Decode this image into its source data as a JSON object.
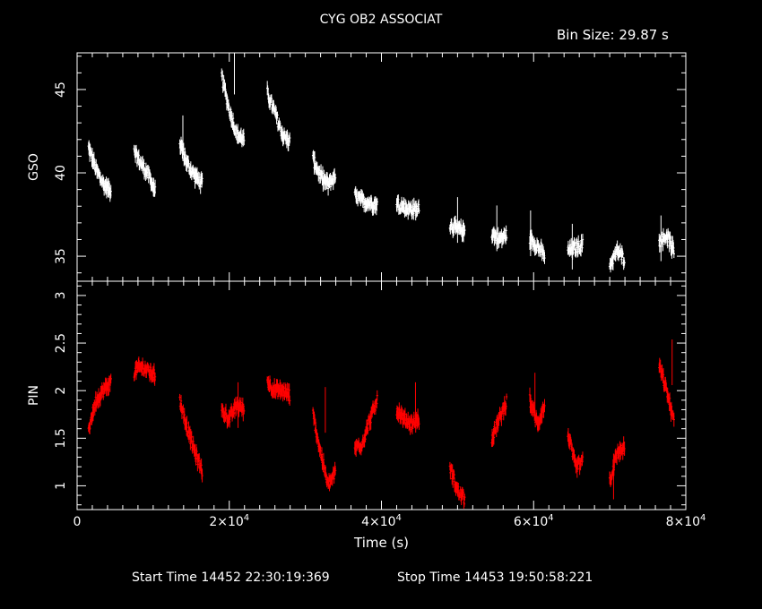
{
  "header": {
    "title": "CYG OB2 ASSOCIAT",
    "bin_size": "Bin Size: 29.87 s"
  },
  "footer": {
    "start_time": "Start Time 14452 22:30:19:369",
    "stop_time": "Stop Time 14453 19:50:58:221"
  },
  "chart_data": [
    {
      "type": "scatter",
      "panel": "top",
      "ylabel": "GSO",
      "xlim": [
        0,
        80000
      ],
      "ylim": [
        33.5,
        47.2
      ],
      "yticks": [
        35,
        40,
        45
      ],
      "color": "#ffffff",
      "error_bars": true,
      "segments": [
        {
          "x": [
            1500,
            2500,
            3500,
            4500
          ],
          "y": [
            41.5,
            40.2,
            39.3,
            38.9
          ]
        },
        {
          "x": [
            7500,
            8500,
            9500,
            10300
          ],
          "y": [
            41.2,
            40.5,
            39.8,
            38.8
          ]
        },
        {
          "x": [
            13500,
            14500,
            15500,
            16500
          ],
          "y": [
            41.8,
            40.5,
            39.8,
            39.3
          ]
        },
        {
          "x": [
            19000,
            20000,
            21000,
            22000
          ],
          "y": [
            45.8,
            43.8,
            42.3,
            42.0
          ]
        },
        {
          "x": [
            25000,
            26000,
            27000,
            28000
          ],
          "y": [
            44.8,
            43.6,
            42.3,
            41.8
          ]
        },
        {
          "x": [
            31000,
            32000,
            33000,
            34000
          ],
          "y": [
            40.8,
            39.8,
            39.3,
            39.8
          ]
        },
        {
          "x": [
            36500,
            37500,
            38500,
            39500
          ],
          "y": [
            38.6,
            38.3,
            38.2,
            38.1
          ]
        },
        {
          "x": [
            42000,
            43000,
            44000,
            45000
          ],
          "y": [
            38.2,
            37.9,
            37.8,
            37.8
          ]
        },
        {
          "x": [
            49000,
            50000,
            51000
          ],
          "y": [
            36.9,
            36.6,
            36.5
          ]
        },
        {
          "x": [
            54500,
            55500,
            56500
          ],
          "y": [
            36.4,
            36.0,
            36.3
          ]
        },
        {
          "x": [
            59500,
            60500,
            61500
          ],
          "y": [
            36.1,
            35.6,
            35.0
          ]
        },
        {
          "x": [
            64500,
            65500,
            66500
          ],
          "y": [
            35.3,
            35.5,
            35.7
          ]
        },
        {
          "x": [
            70000,
            71000,
            72000
          ],
          "y": [
            34.5,
            35.3,
            34.8
          ]
        },
        {
          "x": [
            76500,
            77500,
            78500
          ],
          "y": [
            35.8,
            36.3,
            35.2
          ]
        }
      ]
    },
    {
      "type": "scatter",
      "panel": "bottom",
      "xlabel": "Time (s)",
      "ylabel": "PIN",
      "xlim": [
        0,
        80000
      ],
      "ylim": [
        0.75,
        3.15
      ],
      "yticks": [
        1,
        1.5,
        2,
        2.5,
        3
      ],
      "xticks": [
        0,
        20000,
        40000,
        60000,
        80000
      ],
      "xticklabels": [
        "0",
        "2×10",
        "4×10",
        "6×10",
        "8×10"
      ],
      "xtick_exponent": "4",
      "color": "#ff0000",
      "error_bars": true,
      "segments": [
        {
          "x": [
            1500,
            2500,
            3500,
            4500
          ],
          "y": [
            1.6,
            1.9,
            2.0,
            2.1
          ]
        },
        {
          "x": [
            7500,
            8500,
            9500,
            10300
          ],
          "y": [
            2.2,
            2.25,
            2.2,
            2.15
          ]
        },
        {
          "x": [
            13500,
            14500,
            15500,
            16500
          ],
          "y": [
            1.9,
            1.6,
            1.35,
            1.15
          ]
        },
        {
          "x": [
            19000,
            20000,
            21000,
            22000
          ],
          "y": [
            1.8,
            1.7,
            1.85,
            1.8
          ]
        },
        {
          "x": [
            25000,
            26000,
            27000,
            28000
          ],
          "y": [
            2.1,
            2.0,
            2.0,
            1.95
          ]
        },
        {
          "x": [
            31000,
            32000,
            33000,
            34000
          ],
          "y": [
            1.75,
            1.35,
            1.0,
            1.15
          ]
        },
        {
          "x": [
            36500,
            37500,
            38500,
            39500
          ],
          "y": [
            1.4,
            1.45,
            1.7,
            1.9
          ]
        },
        {
          "x": [
            42000,
            43000,
            44000,
            45000
          ],
          "y": [
            1.8,
            1.7,
            1.65,
            1.7
          ]
        },
        {
          "x": [
            49000,
            50000,
            51000
          ],
          "y": [
            1.2,
            0.95,
            0.85
          ]
        },
        {
          "x": [
            54500,
            55500,
            56500
          ],
          "y": [
            1.5,
            1.7,
            1.9
          ]
        },
        {
          "x": [
            59500,
            60500,
            61500
          ],
          "y": [
            1.9,
            1.65,
            1.85
          ]
        },
        {
          "x": [
            64500,
            65500,
            66500
          ],
          "y": [
            1.55,
            1.2,
            1.25
          ]
        },
        {
          "x": [
            70000,
            71000,
            72000
          ],
          "y": [
            1.05,
            1.35,
            1.4
          ]
        },
        {
          "x": [
            76500,
            77500,
            78500
          ],
          "y": [
            2.25,
            2.0,
            1.65
          ]
        }
      ]
    }
  ]
}
